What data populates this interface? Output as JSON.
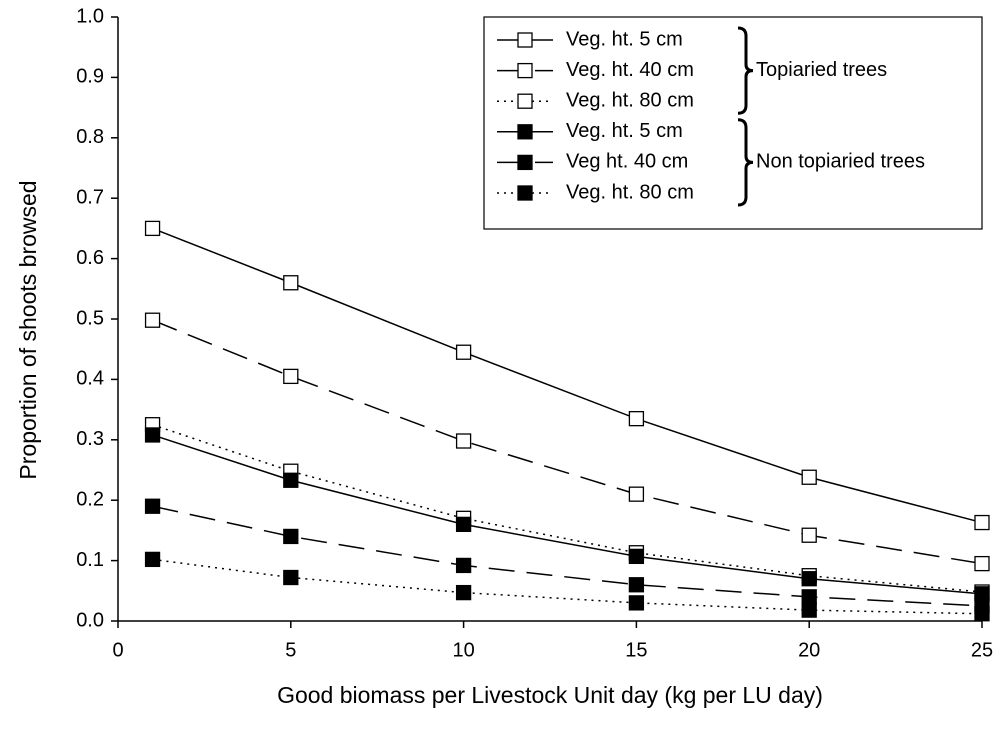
{
  "chart_data": {
    "type": "line",
    "x_label": "Good biomass per Livestock Unit day (kg per LU day)",
    "y_label": "Proportion of shoots browsed",
    "x": [
      1,
      5,
      10,
      15,
      20,
      25
    ],
    "series": [
      {
        "name": "Veg. ht. 5 cm",
        "color": "#000000",
        "marker": "open",
        "dash": "solid",
        "values": [
          0.65,
          0.56,
          0.445,
          0.335,
          0.238,
          0.163
        ]
      },
      {
        "name": "Veg. ht. 40 cm",
        "color": "#000000",
        "marker": "open",
        "dash": "dash",
        "values": [
          0.498,
          0.405,
          0.298,
          0.21,
          0.142,
          0.095
        ]
      },
      {
        "name": "Veg. ht. 80 cm",
        "color": "#000000",
        "marker": "open",
        "dash": "dot",
        "values": [
          0.325,
          0.248,
          0.17,
          0.113,
          0.075,
          0.048
        ]
      },
      {
        "name": "Veg. ht. 5 cm",
        "color": "#000000",
        "marker": "filled",
        "dash": "solid",
        "values": [
          0.308,
          0.233,
          0.16,
          0.107,
          0.07,
          0.045
        ]
      },
      {
        "name": "Veg ht. 40 cm",
        "color": "#000000",
        "marker": "filled",
        "dash": "dash",
        "values": [
          0.19,
          0.14,
          0.092,
          0.06,
          0.04,
          0.025
        ]
      },
      {
        "name": "Veg. ht. 80 cm",
        "color": "#000000",
        "marker": "filled",
        "dash": "dot",
        "values": [
          0.102,
          0.072,
          0.047,
          0.03,
          0.018,
          0.012
        ]
      }
    ],
    "legend_groups": [
      "Topiaried trees",
      "Non topiaried trees"
    ],
    "legend": "upper right",
    "xlim": [
      0,
      25
    ],
    "xticks": [
      0,
      5,
      10,
      15,
      20,
      25
    ],
    "ylim": [
      0,
      1
    ],
    "yticks": [
      {
        "value": 0,
        "label": "0.0"
      },
      0.1,
      0.2,
      0.3,
      0.4,
      0.5,
      0.6,
      0.7,
      0.8,
      0.9,
      {
        "value": 1,
        "label": "1.0"
      }
    ],
    "grid": false
  }
}
